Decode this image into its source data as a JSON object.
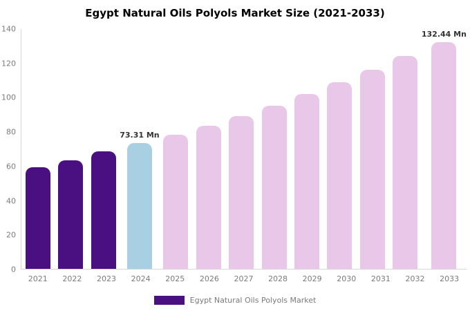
{
  "chart_data": {
    "type": "bar",
    "title": "Egypt Natural Oils Polyols Market Size (2021-2033)",
    "xlabel": "",
    "ylabel": "",
    "categories": [
      "2021",
      "2022",
      "2023",
      "2024",
      "2025",
      "2026",
      "2027",
      "2028",
      "2029",
      "2030",
      "2031",
      "2032",
      "2033"
    ],
    "values": [
      59.5,
      63.5,
      68.5,
      73.31,
      78.3,
      83.6,
      89.3,
      95.4,
      101.9,
      108.8,
      116.2,
      124.1,
      132.44
    ],
    "unit": "Mn",
    "ylim": [
      0,
      140
    ],
    "yticks": [
      0,
      20,
      40,
      60,
      80,
      100,
      120,
      140
    ],
    "grid": false,
    "bar_groups": [
      "historical",
      "historical",
      "historical",
      "highlight",
      "forecast",
      "forecast",
      "forecast",
      "forecast",
      "forecast",
      "forecast",
      "forecast",
      "forecast",
      "forecast"
    ],
    "bar_color_groups": {
      "historical": "#4a0f80",
      "highlight": "#a9cfe3",
      "forecast": "#e9c7e9"
    },
    "annotations": [
      {
        "category": "2024",
        "text": "73.31 Mn"
      },
      {
        "category": "2033",
        "text": "132.44 Mn"
      }
    ],
    "legend": {
      "position": "bottom",
      "label": "Egypt Natural Oils Polyols Market",
      "swatch_color": "#4a0f80"
    },
    "axis_text_color": "#7a7a7a"
  }
}
